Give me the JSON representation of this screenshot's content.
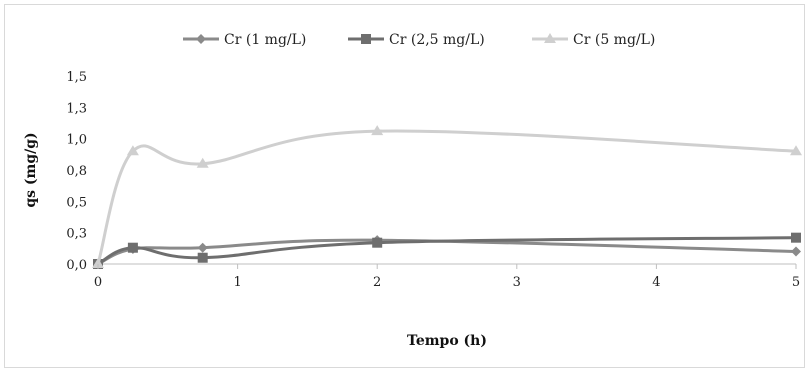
{
  "chart_data": {
    "type": "line",
    "title": "",
    "xlabel": "Tempo (h)",
    "ylabel": "qs (mg/g)",
    "xlim": [
      0,
      5
    ],
    "ylim": [
      0,
      1.5
    ],
    "x_ticks": [
      0,
      1,
      2,
      3,
      4,
      5
    ],
    "y_ticks": [
      0,
      0.25,
      0.5,
      0.75,
      1.0,
      1.25,
      1.5
    ],
    "y_tick_labels": [
      "0,0",
      "0,3",
      "0,5",
      "0,8",
      "1,0",
      "1,3",
      "1,5"
    ],
    "grid": false,
    "legend_position": "top",
    "series": [
      {
        "name": "Cr (1 mg/L)",
        "marker": "diamond",
        "color": "#8a8a8a",
        "x": [
          0,
          0.25,
          0.75,
          2,
          5
        ],
        "y": [
          0.0,
          0.12,
          0.13,
          0.19,
          0.1
        ]
      },
      {
        "name": "Cr (2,5 mg/L)",
        "marker": "square",
        "color": "#6e6e6e",
        "x": [
          0,
          0.25,
          0.75,
          2,
          5
        ],
        "y": [
          0.0,
          0.13,
          0.05,
          0.17,
          0.21
        ]
      },
      {
        "name": "Cr (5 mg/L)",
        "marker": "triangle",
        "color": "#cfcfcf",
        "x": [
          0,
          0.25,
          0.75,
          2,
          5
        ],
        "y": [
          0.0,
          0.9,
          0.8,
          1.06,
          0.9
        ]
      }
    ]
  }
}
